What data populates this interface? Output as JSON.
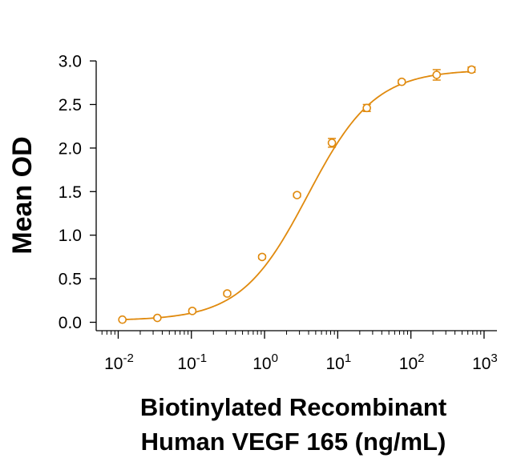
{
  "chart_data": {
    "type": "scatter",
    "title": "",
    "xlabel_lines": [
      "Biotinylated Recombinant",
      "Human VEGF 165 (ng/mL)"
    ],
    "ylabel": "Mean OD",
    "x_scale": "log",
    "xlim": [
      0.005,
      1500
    ],
    "ylim": [
      -0.1,
      3.0
    ],
    "x_ticks": [
      0.01,
      0.1,
      1,
      10,
      100,
      1000
    ],
    "x_tick_labels": [
      {
        "base": "10",
        "exp": "-2"
      },
      {
        "base": "10",
        "exp": "-1"
      },
      {
        "base": "10",
        "exp": "0"
      },
      {
        "base": "10",
        "exp": "1"
      },
      {
        "base": "10",
        "exp": "2"
      },
      {
        "base": "10",
        "exp": "3"
      }
    ],
    "y_ticks": [
      0.0,
      0.5,
      1.0,
      1.5,
      2.0,
      2.5,
      3.0
    ],
    "y_tick_labels": [
      "0.0",
      "0.5",
      "1.0",
      "1.5",
      "2.0",
      "2.5",
      "3.0"
    ],
    "color": "#E08A0E",
    "grid": false,
    "legend": "none",
    "fit": {
      "model": "4PL",
      "bottom": 0.02,
      "top": 2.9,
      "ec50": 3.9,
      "hill": 0.95
    },
    "series": [
      {
        "points": [
          {
            "x": 0.0114,
            "y": 0.03,
            "err": 0.01
          },
          {
            "x": 0.0343,
            "y": 0.05,
            "err": 0.01
          },
          {
            "x": 0.103,
            "y": 0.13,
            "err": 0.02
          },
          {
            "x": 0.309,
            "y": 0.33,
            "err": 0.02
          },
          {
            "x": 0.926,
            "y": 0.75,
            "err": 0.02
          },
          {
            "x": 2.78,
            "y": 1.46,
            "err": 0.02
          },
          {
            "x": 8.33,
            "y": 2.06,
            "err": 0.05
          },
          {
            "x": 25.0,
            "y": 2.46,
            "err": 0.04
          },
          {
            "x": 75.0,
            "y": 2.76,
            "err": 0.02
          },
          {
            "x": 225,
            "y": 2.84,
            "err": 0.06
          },
          {
            "x": 675,
            "y": 2.9,
            "err": 0.03
          }
        ]
      }
    ]
  }
}
